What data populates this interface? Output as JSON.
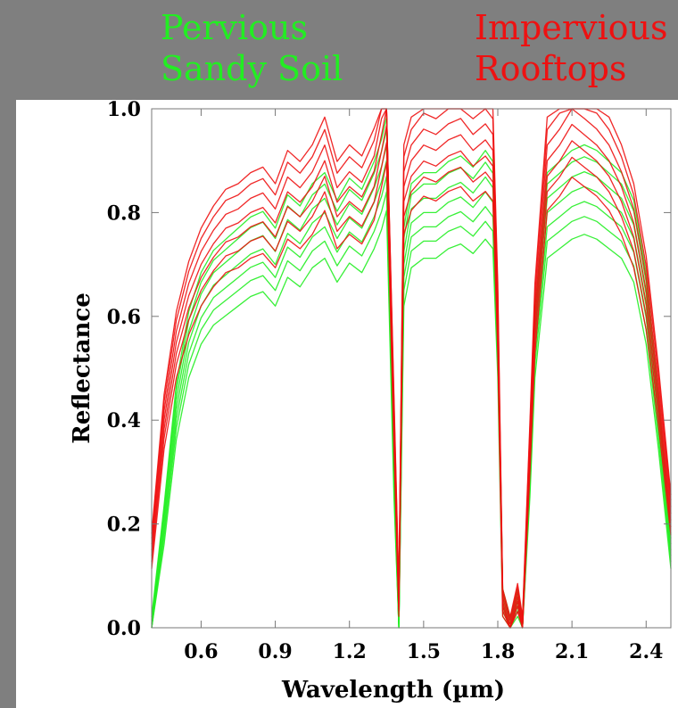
{
  "legend": {
    "pervious": "Pervious\nSandy Soil",
    "impervious": "Impervious\nRooftops"
  },
  "colors": {
    "pervious": "#22ee22",
    "impervious": "#ee1111",
    "background": "#7f7f7f"
  },
  "chart_data": {
    "type": "line",
    "xlabel": "Wavelength (µm)",
    "ylabel": "Reflectance",
    "xlim": [
      0.4,
      2.5
    ],
    "ylim": [
      0.0,
      1.0
    ],
    "xticks": [
      "0.6",
      "0.9",
      "1.2",
      "1.5",
      "1.8",
      "2.1",
      "2.4"
    ],
    "yticks": [
      "0.0",
      "0.2",
      "0.4",
      "0.6",
      "0.8",
      "1.0"
    ],
    "series": [
      {
        "group": "pervious",
        "x": [
          0.4,
          0.45,
          0.5,
          0.55,
          0.6,
          0.65,
          0.7,
          0.75,
          0.8,
          0.85,
          0.9,
          0.95,
          1.0,
          1.05,
          1.1,
          1.15,
          1.2,
          1.25,
          1.3,
          1.33,
          1.35,
          1.38,
          1.4,
          1.42,
          1.45,
          1.5,
          1.55,
          1.6,
          1.65,
          1.7,
          1.75,
          1.78,
          1.8,
          1.82,
          1.85,
          1.88,
          1.9,
          1.93,
          1.95,
          2.0,
          2.05,
          2.1,
          2.15,
          2.2,
          2.25,
          2.3,
          2.35,
          2.4,
          2.45,
          2.5
        ],
        "y": [
          0.0,
          0.2,
          0.42,
          0.55,
          0.62,
          0.66,
          0.68,
          0.7,
          0.72,
          0.73,
          0.7,
          0.76,
          0.74,
          0.78,
          0.8,
          0.75,
          0.79,
          0.77,
          0.82,
          0.86,
          0.9,
          0.3,
          0.0,
          0.7,
          0.78,
          0.8,
          0.8,
          0.82,
          0.83,
          0.81,
          0.84,
          0.82,
          0.55,
          0.05,
          0.0,
          0.05,
          0.0,
          0.3,
          0.55,
          0.8,
          0.82,
          0.84,
          0.85,
          0.84,
          0.82,
          0.8,
          0.75,
          0.62,
          0.4,
          0.15
        ]
      },
      {
        "group": "impervious",
        "x": [
          0.4,
          0.45,
          0.5,
          0.55,
          0.6,
          0.65,
          0.7,
          0.75,
          0.8,
          0.85,
          0.9,
          0.95,
          1.0,
          1.05,
          1.1,
          1.15,
          1.2,
          1.25,
          1.3,
          1.33,
          1.35,
          1.38,
          1.4,
          1.42,
          1.45,
          1.5,
          1.55,
          1.6,
          1.65,
          1.7,
          1.75,
          1.78,
          1.8,
          1.82,
          1.85,
          1.88,
          1.9,
          1.93,
          1.95,
          2.0,
          2.05,
          2.1,
          2.15,
          2.2,
          2.25,
          2.3,
          2.35,
          2.4,
          2.45,
          2.5
        ],
        "y": [
          0.15,
          0.4,
          0.55,
          0.64,
          0.7,
          0.74,
          0.77,
          0.78,
          0.8,
          0.81,
          0.78,
          0.84,
          0.82,
          0.85,
          0.9,
          0.82,
          0.85,
          0.83,
          0.88,
          0.95,
          1.0,
          0.4,
          0.05,
          0.85,
          0.9,
          0.93,
          0.92,
          0.94,
          0.95,
          0.92,
          0.94,
          0.92,
          0.6,
          0.05,
          0.0,
          0.06,
          0.0,
          0.35,
          0.6,
          0.9,
          0.93,
          0.97,
          0.95,
          0.93,
          0.9,
          0.85,
          0.78,
          0.65,
          0.45,
          0.22
        ]
      }
    ]
  }
}
